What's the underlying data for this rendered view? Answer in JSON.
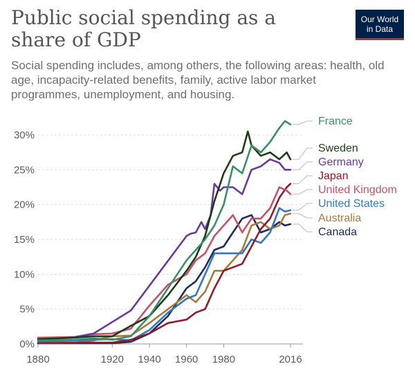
{
  "page": {
    "title": "Public social spending as a share of GDP",
    "subtitle": "Social spending includes, among others, the following areas: health, old age, incapacity-related benefits, family, active labor market programmes, unemployment, and housing.",
    "logo_line1": "Our World",
    "logo_line2": "in Data"
  },
  "chart_data": {
    "type": "line",
    "title": "Public social spending as a share of GDP",
    "xlabel": "",
    "ylabel": "",
    "xlim": [
      1880,
      2016
    ],
    "ylim": [
      0,
      32
    ],
    "x_ticks": [
      1880,
      1920,
      1940,
      1960,
      1980,
      2016
    ],
    "x_tick_labels": [
      "1880",
      "1920",
      "1940",
      "1960",
      "1980",
      "2016"
    ],
    "y_ticks": [
      0,
      5,
      10,
      15,
      20,
      25,
      30
    ],
    "y_tick_labels": [
      "0%",
      "5%",
      "10%",
      "15%",
      "20%",
      "25%",
      "30%"
    ],
    "grid": "horizontal dotted",
    "legend": "right, labels at line ends",
    "series": [
      {
        "name": "France",
        "color": "#3a8f6a",
        "x": [
          1880,
          1900,
          1910,
          1920,
          1930,
          1940,
          1950,
          1960,
          1970,
          1975,
          1980,
          1985,
          1990,
          1995,
          2000,
          2005,
          2010,
          2013,
          2016
        ],
        "y": [
          0.5,
          0.6,
          0.8,
          0.6,
          1.1,
          4.0,
          8.0,
          12.0,
          15.0,
          17.0,
          20.0,
          25.5,
          24.5,
          28.5,
          27.5,
          29.0,
          31.0,
          32.0,
          31.5
        ]
      },
      {
        "name": "Sweden",
        "color": "#1f3d14",
        "x": [
          1880,
          1900,
          1910,
          1920,
          1930,
          1940,
          1950,
          1960,
          1965,
          1970,
          1975,
          1980,
          1985,
          1990,
          1993,
          1995,
          2000,
          2005,
          2010,
          2014,
          2016
        ],
        "y": [
          0.7,
          0.9,
          1.1,
          1.1,
          2.6,
          4.0,
          7.0,
          10.5,
          12.5,
          15.5,
          20.5,
          24.5,
          27.0,
          27.5,
          30.5,
          28.5,
          27.0,
          27.5,
          26.5,
          27.5,
          26.5
        ]
      },
      {
        "name": "Germany",
        "color": "#6a3a9a",
        "x": [
          1880,
          1900,
          1910,
          1930,
          1960,
          1962,
          1965,
          1968,
          1970,
          1973,
          1975,
          1978,
          1980,
          1985,
          1990,
          1995,
          2000,
          2005,
          2010,
          2013,
          2016
        ],
        "y": [
          0.5,
          1.0,
          1.5,
          4.8,
          15.5,
          15.8,
          16.0,
          17.5,
          16.5,
          18.5,
          23.0,
          22.0,
          22.5,
          22.5,
          21.5,
          25.0,
          25.5,
          26.5,
          26.0,
          25.0,
          25.0
        ]
      },
      {
        "name": "Japan",
        "color": "#8f1b2d",
        "x": [
          1880,
          1900,
          1910,
          1920,
          1930,
          1940,
          1950,
          1960,
          1965,
          1970,
          1975,
          1980,
          1985,
          1990,
          1995,
          2000,
          2005,
          2010,
          2014,
          2016
        ],
        "y": [
          0.1,
          0.2,
          0.2,
          0.2,
          0.6,
          1.5,
          3.0,
          3.5,
          4.5,
          5.0,
          8.0,
          10.5,
          11.0,
          11.5,
          14.0,
          16.5,
          18.0,
          21.0,
          22.5,
          23.0
        ]
      },
      {
        "name": "United Kingdom",
        "color": "#c4526a",
        "x": [
          1880,
          1900,
          1910,
          1920,
          1930,
          1940,
          1950,
          1960,
          1965,
          1970,
          1975,
          1980,
          1985,
          1990,
          1995,
          2000,
          2005,
          2010,
          2014,
          2016
        ],
        "y": [
          0.9,
          1.0,
          1.4,
          1.5,
          2.2,
          5.5,
          8.5,
          10.0,
          12.0,
          13.0,
          15.5,
          17.0,
          18.5,
          16.0,
          18.0,
          18.0,
          19.5,
          22.5,
          22.0,
          21.5
        ]
      },
      {
        "name": "United States",
        "color": "#3476c4",
        "x": [
          1880,
          1900,
          1910,
          1920,
          1930,
          1940,
          1950,
          1960,
          1965,
          1970,
          1975,
          1980,
          1985,
          1990,
          1995,
          2000,
          2005,
          2010,
          2013,
          2016
        ],
        "y": [
          0.3,
          0.5,
          0.6,
          0.7,
          0.5,
          2.0,
          4.5,
          6.5,
          7.0,
          10.0,
          13.0,
          13.0,
          13.0,
          13.0,
          15.0,
          14.5,
          16.0,
          19.5,
          19.0,
          19.2
        ]
      },
      {
        "name": "Australia",
        "color": "#a57c3a",
        "x": [
          1880,
          1900,
          1910,
          1920,
          1930,
          1940,
          1950,
          1960,
          1965,
          1970,
          1975,
          1980,
          1985,
          1990,
          1995,
          2000,
          2005,
          2010,
          2013,
          2016
        ],
        "y": [
          0.1,
          0.2,
          0.5,
          1.1,
          1.2,
          3.0,
          5.0,
          7.0,
          6.0,
          7.5,
          10.5,
          10.5,
          12.0,
          13.5,
          17.0,
          17.5,
          16.5,
          17.0,
          18.5,
          18.7
        ]
      },
      {
        "name": "Canada",
        "color": "#1d2c5a",
        "x": [
          1880,
          1900,
          1910,
          1920,
          1930,
          1940,
          1950,
          1960,
          1965,
          1970,
          1975,
          1980,
          1985,
          1990,
          1995,
          2000,
          2005,
          2010,
          2013,
          2016
        ],
        "y": [
          0.1,
          0.1,
          0.1,
          0.1,
          0.3,
          1.5,
          4.0,
          8.0,
          9.0,
          11.0,
          13.5,
          14.0,
          16.0,
          18.0,
          18.5,
          16.0,
          16.5,
          17.5,
          17.0,
          17.2
        ]
      }
    ],
    "legend_order": [
      "France",
      "Sweden",
      "Germany",
      "Japan",
      "United Kingdom",
      "United States",
      "Australia",
      "Canada"
    ]
  }
}
